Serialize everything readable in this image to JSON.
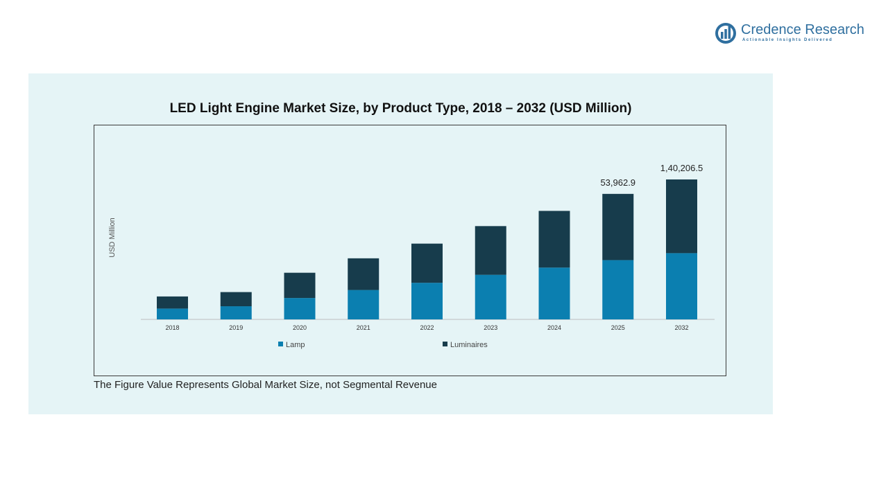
{
  "brand": {
    "name": "Credence Research",
    "tagline": "Actionable Insights Delivered",
    "color": "#2f6f9f"
  },
  "footnote": "The Figure Value Represents Global Market Size, not Segmental Revenue",
  "chart_data": {
    "type": "bar",
    "stacked": true,
    "title": "LED Light Engine Market Size, by Product Type, 2018 – 2032 (USD Million)",
    "xlabel": "",
    "ylabel": "USD Million",
    "categories": [
      "2018",
      "2019",
      "2020",
      "2021",
      "2022",
      "2023",
      "2024",
      "2025",
      "2032"
    ],
    "series": [
      {
        "name": "Lamp",
        "color": "#0b7fb0",
        "values": [
          4200,
          5100,
          8300,
          11400,
          14200,
          17300,
          20100,
          23000,
          25700
        ]
      },
      {
        "name": "Luminaires",
        "color": "#173c4c",
        "values": [
          4700,
          5500,
          9800,
          12300,
          15200,
          18900,
          22000,
          25700,
          28600
        ]
      }
    ],
    "data_labels": [
      {
        "category": "2025",
        "text": "53,962.9"
      },
      {
        "category": "2032",
        "text": "1,40,206.5"
      }
    ],
    "ylim": [
      0,
      75000
    ],
    "grid": false,
    "legend_position": "bottom"
  }
}
